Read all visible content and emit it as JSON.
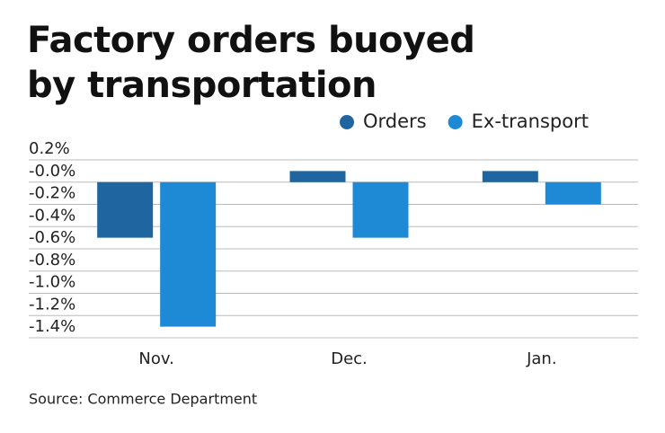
{
  "chart_data": {
    "type": "bar",
    "title": "Factory orders buoyed by transportation",
    "source": "Source: Commerce Department",
    "categories": [
      "Nov.",
      "Dec.",
      "Jan."
    ],
    "series": [
      {
        "name": "Orders",
        "color": "#1f66a0",
        "values": [
          -0.5,
          0.1,
          0.1
        ]
      },
      {
        "name": "Ex-transport",
        "color": "#1e8ad6",
        "values": [
          -1.3,
          -0.5,
          -0.2
        ]
      }
    ],
    "ylim": [
      -1.4,
      0.2
    ],
    "yticks": [
      {
        "value": 0.2,
        "label": "0.2%"
      },
      {
        "value": 0,
        "label": "-0.0%"
      },
      {
        "value": -0.2,
        "label": "-0.2%"
      },
      {
        "value": -0.4,
        "label": "-0.4%"
      },
      {
        "value": -0.6,
        "label": "-0.6%"
      },
      {
        "value": -0.8,
        "label": "-0.8%"
      },
      {
        "value": -1.0,
        "label": "-1.0%"
      },
      {
        "value": -1.2,
        "label": "-1.2%"
      },
      {
        "value": -1.4,
        "label": "-1.4%"
      }
    ],
    "grid": true
  }
}
